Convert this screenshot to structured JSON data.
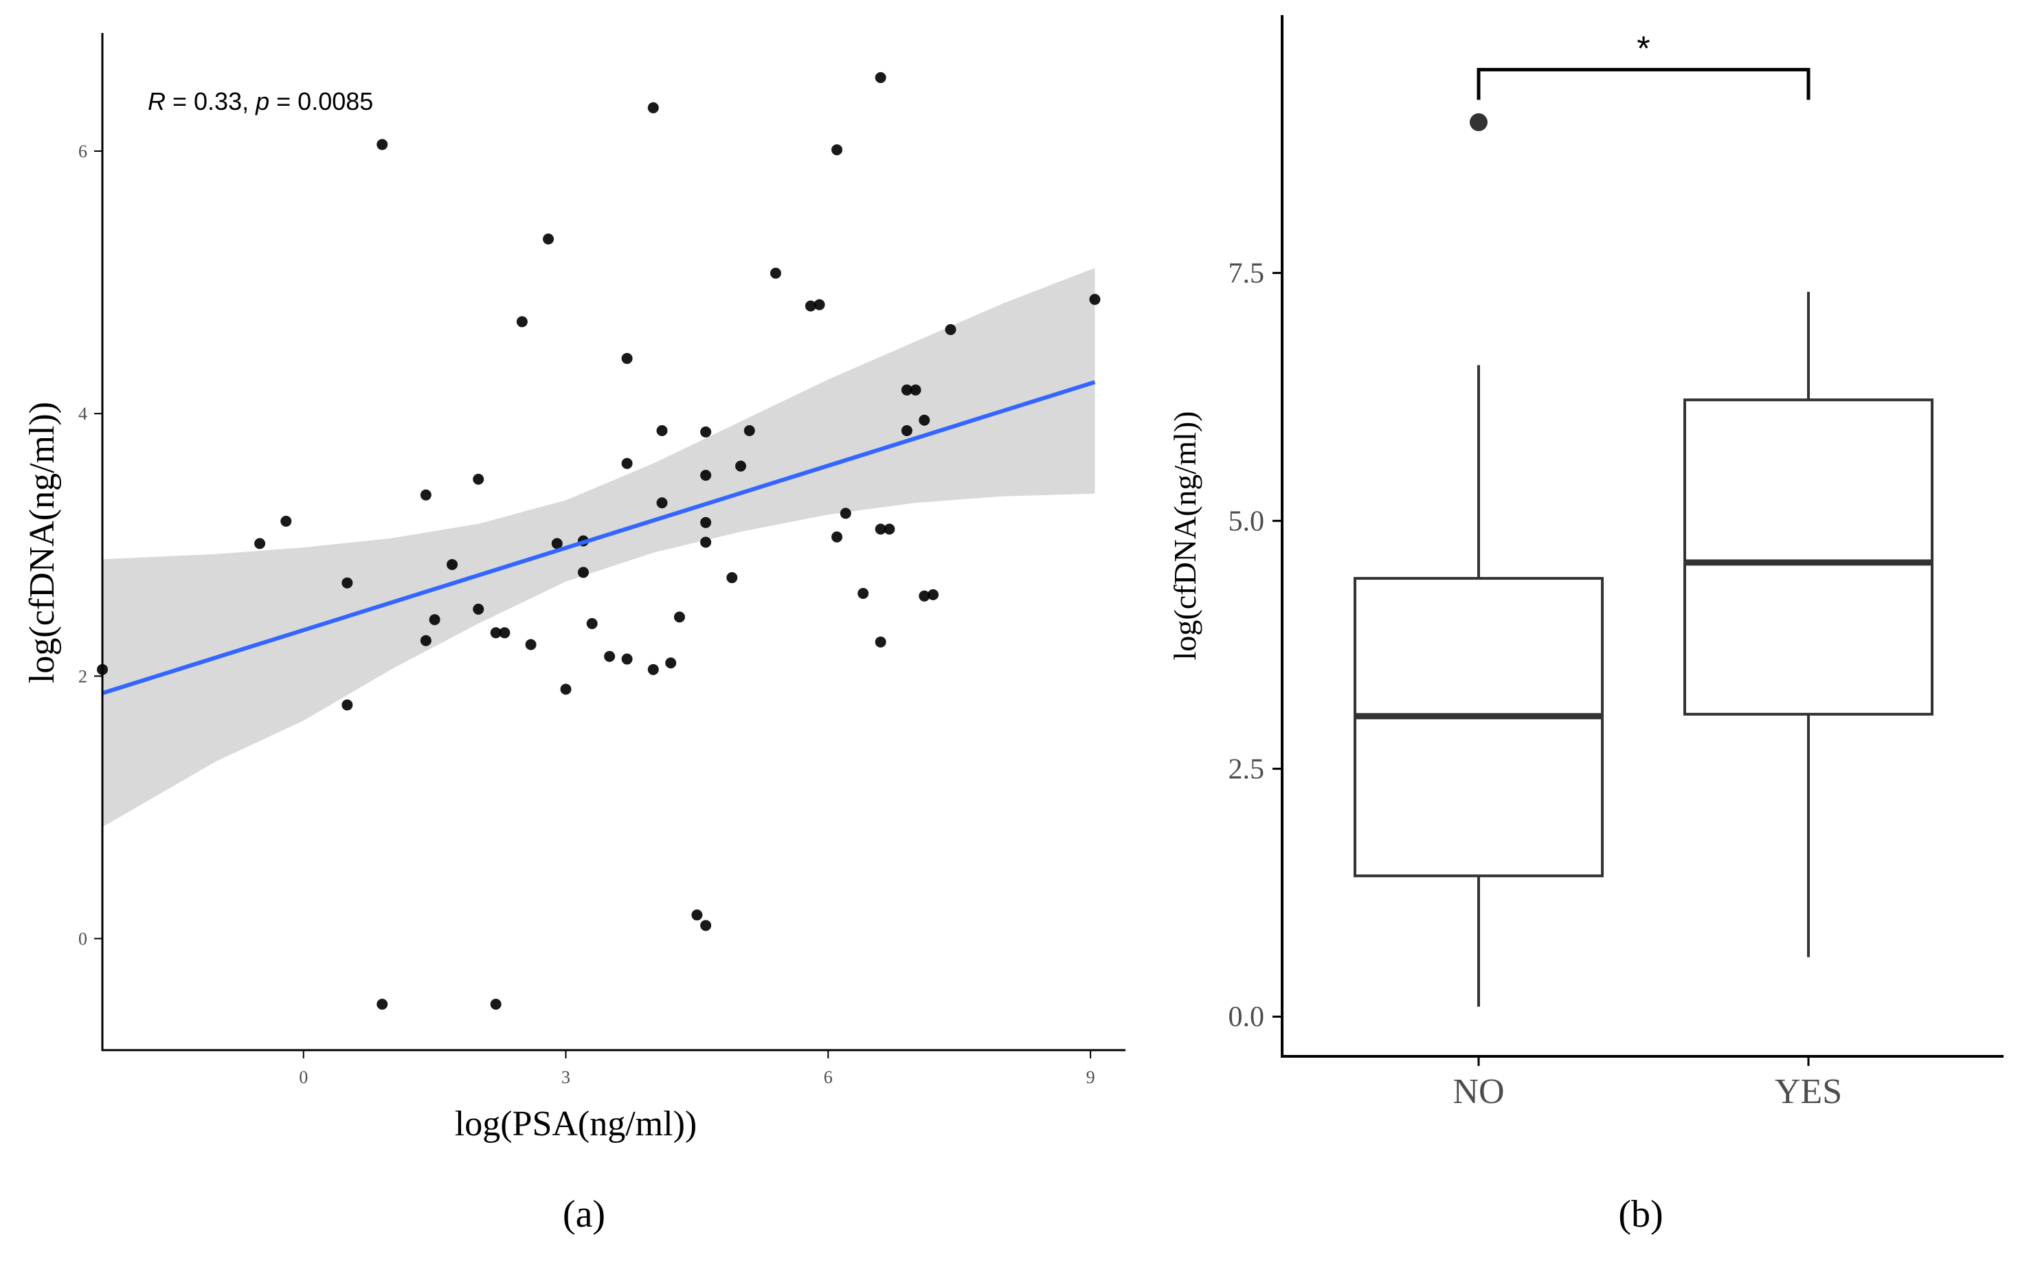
{
  "panels": {
    "a_label": "(a)",
    "b_label": "(b)"
  },
  "chart_data": [
    {
      "type": "scatter",
      "id": "a",
      "title": "",
      "xlabel": "log(PSA(ng/ml))",
      "ylabel": "log(cfDNA(ng/ml))",
      "xlim": [
        -2.3,
        9.4
      ],
      "ylim": [
        -0.85,
        6.9
      ],
      "xticks": [
        "0",
        "3",
        "6",
        "9"
      ],
      "yticks": [
        "0",
        "2",
        "4",
        "6"
      ],
      "annotation": {
        "r_symbol": "R",
        "r_text": " = 0.33, ",
        "p_symbol": "p",
        "p_text": " = 0.0085"
      },
      "regression": {
        "x": [
          -2.3,
          9.05
        ],
        "y": [
          1.87,
          4.24
        ],
        "color": "#3366ff"
      },
      "confidence_band": {
        "x": [
          -2.3,
          -1.0,
          0.0,
          1.0,
          2.0,
          3.0,
          4.0,
          5.0,
          6.0,
          7.0,
          8.0,
          9.05
        ],
        "upper": [
          2.89,
          2.93,
          2.98,
          3.05,
          3.16,
          3.34,
          3.62,
          3.94,
          4.26,
          4.55,
          4.84,
          5.11
        ],
        "lower": [
          0.85,
          1.35,
          1.66,
          2.05,
          2.4,
          2.72,
          2.94,
          3.1,
          3.23,
          3.32,
          3.37,
          3.39
        ],
        "color": "#d9d9d9"
      },
      "points": [
        [
          -2.3,
          2.05
        ],
        [
          -0.5,
          3.01
        ],
        [
          -0.2,
          3.18
        ],
        [
          0.5,
          1.78
        ],
        [
          0.5,
          2.71
        ],
        [
          0.9,
          6.05
        ],
        [
          0.9,
          -0.5
        ],
        [
          1.4,
          3.38
        ],
        [
          1.4,
          2.27
        ],
        [
          1.5,
          2.43
        ],
        [
          1.7,
          2.85
        ],
        [
          2.0,
          3.5
        ],
        [
          2.0,
          2.51
        ],
        [
          2.2,
          2.33
        ],
        [
          2.2,
          -0.5
        ],
        [
          2.3,
          2.33
        ],
        [
          2.5,
          4.7
        ],
        [
          2.6,
          2.24
        ],
        [
          2.8,
          5.33
        ],
        [
          2.9,
          3.01
        ],
        [
          3.0,
          1.9
        ],
        [
          3.2,
          2.79
        ],
        [
          3.2,
          3.03
        ],
        [
          3.3,
          2.4
        ],
        [
          3.5,
          2.15
        ],
        [
          3.7,
          4.42
        ],
        [
          3.7,
          3.62
        ],
        [
          3.7,
          2.13
        ],
        [
          4.0,
          6.33
        ],
        [
          4.0,
          2.05
        ],
        [
          4.1,
          3.87
        ],
        [
          4.1,
          3.32
        ],
        [
          4.2,
          2.1
        ],
        [
          4.3,
          2.45
        ],
        [
          4.5,
          0.18
        ],
        [
          4.6,
          0.1
        ],
        [
          4.6,
          3.86
        ],
        [
          4.6,
          3.53
        ],
        [
          4.6,
          3.17
        ],
        [
          4.6,
          3.02
        ],
        [
          4.9,
          2.75
        ],
        [
          5.0,
          3.6
        ],
        [
          5.1,
          3.87
        ],
        [
          5.4,
          5.07
        ],
        [
          5.8,
          4.82
        ],
        [
          5.9,
          4.83
        ],
        [
          6.1,
          6.01
        ],
        [
          6.1,
          3.06
        ],
        [
          6.2,
          3.24
        ],
        [
          6.4,
          2.63
        ],
        [
          6.6,
          6.56
        ],
        [
          6.6,
          3.12
        ],
        [
          6.6,
          2.26
        ],
        [
          6.7,
          3.12
        ],
        [
          6.9,
          3.87
        ],
        [
          6.9,
          4.18
        ],
        [
          7.0,
          4.18
        ],
        [
          7.1,
          3.95
        ],
        [
          7.1,
          2.61
        ],
        [
          7.2,
          2.62
        ],
        [
          7.4,
          4.64
        ],
        [
          9.05,
          4.87
        ]
      ]
    },
    {
      "type": "box",
      "id": "b",
      "title": "",
      "xlabel": "",
      "ylabel": "log(cfDNA(ng/ml))",
      "ylim": [
        -0.4,
        10.1
      ],
      "yticks": [
        "0.0",
        "2.5",
        "5.0",
        "7.5"
      ],
      "categories": [
        "NO",
        "YES"
      ],
      "boxes": [
        {
          "name": "NO",
          "whisker_low": 0.1,
          "q1": 1.42,
          "median": 3.03,
          "q3": 4.42,
          "whisker_high": 6.57,
          "outliers": [
            9.02
          ]
        },
        {
          "name": "YES",
          "whisker_low": 0.6,
          "q1": 3.05,
          "median": 4.58,
          "q3": 6.22,
          "whisker_high": 7.31,
          "outliers": []
        }
      ],
      "significance": {
        "label": "*",
        "pair": [
          "NO",
          "YES"
        ],
        "level": 9.55
      }
    }
  ]
}
